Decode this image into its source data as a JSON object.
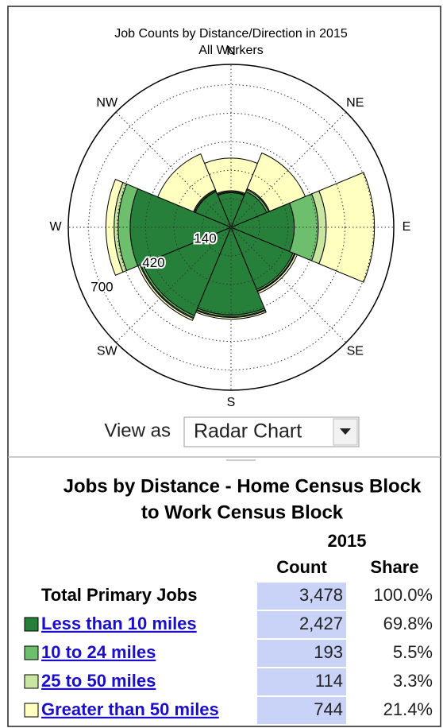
{
  "chart_data": {
    "type": "radar",
    "title": "Job Counts by Distance/Direction in 2015",
    "subtitle": "All Workers",
    "categories": [
      "E",
      "NE",
      "N",
      "NW",
      "W",
      "SW",
      "S",
      "SE"
    ],
    "series": [
      {
        "color": "#27803a",
        "values": [
          311,
          190,
          170,
          190,
          496,
          470,
          430,
          330
        ]
      },
      {
        "color": "#6dbf6d",
        "values": [
          118,
          10,
          5,
          5,
          59,
          10,
          8,
          8
        ]
      },
      {
        "color": "#c8e6a0",
        "values": [
          39,
          5,
          5,
          5,
          20,
          5,
          5,
          4
        ]
      },
      {
        "color": "#ffffc0",
        "values": [
          237,
          190,
          160,
          190,
          40,
          10,
          8,
          10
        ]
      }
    ],
    "rlim": [
      0,
      800
    ],
    "rticks": [
      140,
      420,
      700
    ],
    "rgrid": [
      140,
      280,
      420,
      560,
      700
    ],
    "stacked": true
  },
  "view_as": {
    "label": "View as",
    "selected": "Radar Chart"
  },
  "table": {
    "title": "Jobs by Distance - Home Census Block to Work Census Block",
    "year": "2015",
    "columns": [
      "Count",
      "Share"
    ],
    "rows": [
      {
        "label": "Total Primary Jobs",
        "count": "3,478",
        "share": "100.0%"
      },
      {
        "label": "Less than 10 miles",
        "count": "2,427",
        "share": "69.8%"
      },
      {
        "label": "10 to 24 miles",
        "count": "193",
        "share": "5.5%"
      },
      {
        "label": "25 to 50 miles",
        "count": "114",
        "share": "3.3%"
      },
      {
        "label": "Greater than 50 miles",
        "count": "744",
        "share": "21.4%"
      }
    ]
  }
}
